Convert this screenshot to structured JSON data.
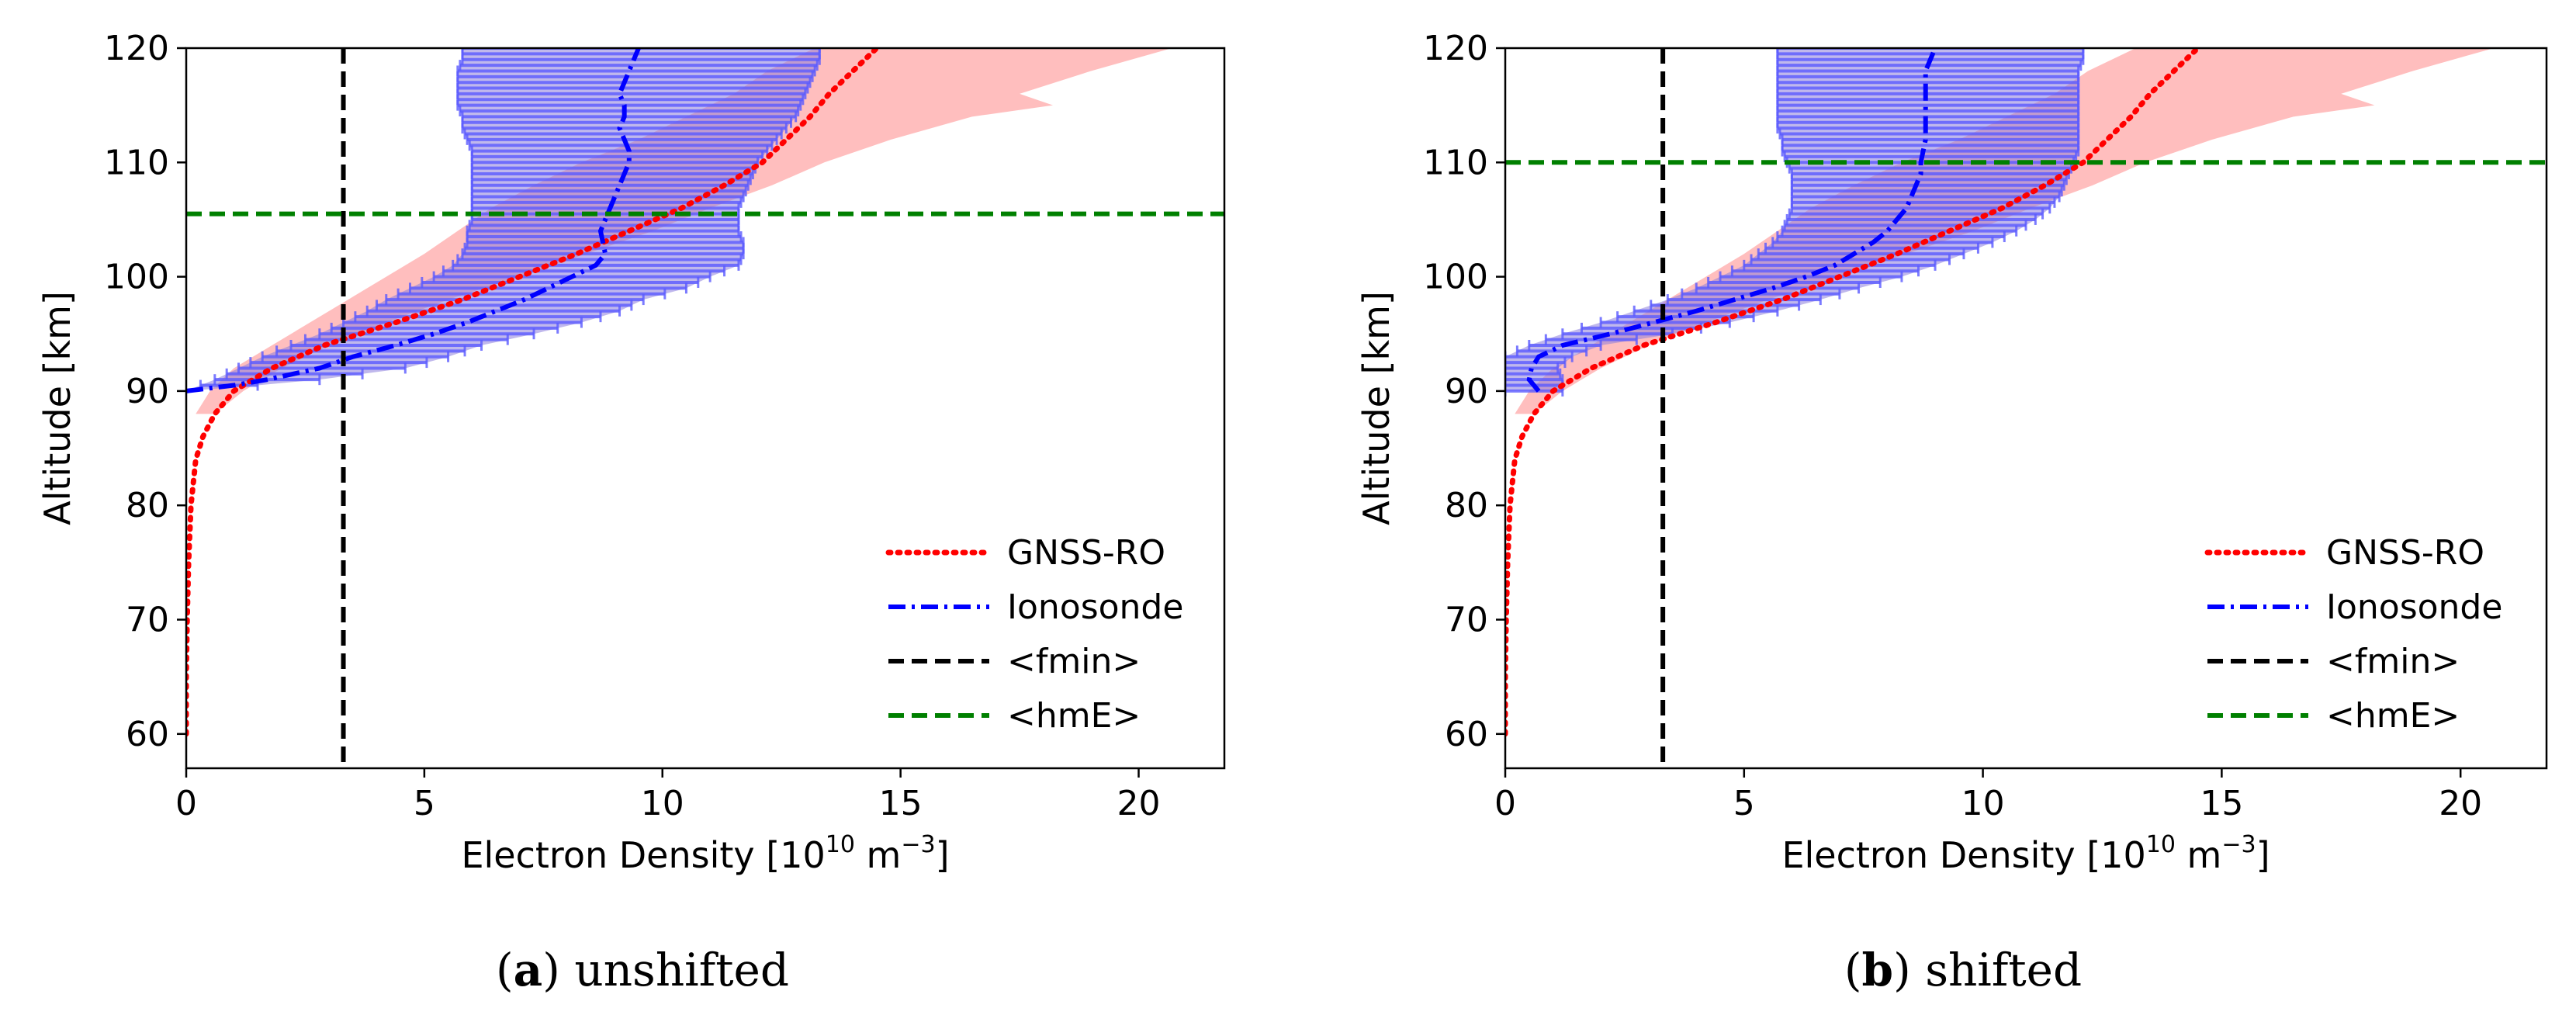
{
  "chart_data": [
    {
      "type": "line",
      "panel": "a",
      "caption_letter": "a",
      "caption_text": "unshifted",
      "xlabel": {
        "main": "Electron Density [10",
        "exp1": "10",
        "mid": " m",
        "exp2": "−3",
        "end": "]"
      },
      "ylabel": "Altitude [km]",
      "xlim": [
        0,
        21.8
      ],
      "ylim": [
        57,
        120
      ],
      "xticks": [
        "0",
        "5",
        "10",
        "15",
        "20"
      ],
      "xtick_values": [
        0,
        5,
        10,
        15,
        20
      ],
      "yticks": [
        "60",
        "70",
        "80",
        "90",
        "100",
        "110",
        "120"
      ],
      "ytick_values": [
        60,
        70,
        80,
        90,
        100,
        110,
        120
      ],
      "fmin": 3.3,
      "hmE": 105.5,
      "legend": [
        "GNSS-RO",
        "Ionosonde",
        "<fmin>",
        "<hmE>"
      ],
      "colors": {
        "gnss": "#ff0000",
        "band": "#ffb3b3",
        "iono": "#0000ff",
        "errorbar": "#5b5bff",
        "ionoband": "#8d7ddc",
        "fmin": "#000000",
        "hmE": "#008000"
      },
      "gnss_ro": {
        "altitude": [
          60,
          65,
          70,
          75,
          80,
          84,
          86,
          88,
          90,
          92,
          94,
          96,
          98,
          100,
          102,
          104,
          106,
          108,
          110,
          112,
          114,
          116,
          118,
          120
        ],
        "density": [
          0.0,
          0.0,
          0.02,
          0.05,
          0.1,
          0.2,
          0.35,
          0.6,
          1.0,
          1.8,
          2.9,
          4.4,
          5.8,
          7.0,
          8.2,
          9.3,
          10.4,
          11.3,
          12.1,
          12.6,
          13.1,
          13.5,
          14.0,
          14.5
        ]
      },
      "gnss_band": {
        "altitude": [
          88,
          90,
          92,
          94,
          96,
          98,
          100,
          102,
          104,
          106,
          108,
          110,
          112,
          114,
          115,
          116,
          118,
          120
        ],
        "lower": [
          0.2,
          0.5,
          1.0,
          1.8,
          2.6,
          3.4,
          4.2,
          5.0,
          5.7,
          6.4,
          7.3,
          8.3,
          9.5,
          10.5,
          11.0,
          11.5,
          12.2,
          13.2
        ],
        "upper": [
          0.6,
          1.2,
          2.0,
          3.0,
          4.2,
          5.5,
          7.0,
          8.4,
          9.8,
          11.0,
          12.3,
          13.4,
          14.8,
          16.5,
          18.2,
          17.5,
          19.0,
          20.7
        ]
      },
      "ionosonde": {
        "altitude": [
          90,
          90.5,
          91,
          92,
          93,
          94,
          95,
          96,
          97,
          98,
          99,
          100,
          101,
          102,
          103,
          104,
          105,
          106,
          107,
          108,
          109,
          110,
          111,
          112,
          113,
          114,
          115,
          116,
          117,
          118,
          119,
          120
        ],
        "density": [
          0.0,
          1.0,
          1.7,
          2.8,
          3.5,
          4.4,
          5.2,
          5.9,
          6.5,
          7.1,
          7.6,
          8.1,
          8.6,
          8.8,
          8.75,
          8.7,
          8.8,
          8.9,
          9.0,
          9.1,
          9.2,
          9.3,
          9.3,
          9.2,
          9.1,
          9.2,
          9.2,
          9.1,
          9.2,
          9.3,
          9.4,
          9.5
        ],
        "err_lo": [
          0.0,
          0.3,
          0.6,
          1.1,
          1.6,
          2.2,
          2.8,
          3.3,
          3.8,
          4.2,
          4.7,
          5.2,
          5.6,
          5.8,
          5.9,
          5.9,
          6.0,
          6.0,
          6.0,
          6.0,
          6.0,
          6.0,
          6.0,
          5.9,
          5.8,
          5.8,
          5.7,
          5.7,
          5.7,
          5.7,
          5.8,
          5.8
        ],
        "err_hi": [
          0.0,
          1.5,
          2.8,
          4.6,
          5.5,
          6.2,
          7.3,
          8.3,
          9.1,
          9.6,
          10.5,
          11.0,
          11.6,
          11.7,
          11.7,
          11.6,
          11.6,
          11.6,
          11.7,
          11.8,
          11.9,
          12.0,
          12.2,
          12.4,
          12.6,
          12.8,
          12.9,
          13.0,
          13.1,
          13.2,
          13.3,
          13.3
        ]
      }
    },
    {
      "type": "line",
      "panel": "b",
      "caption_letter": "b",
      "caption_text": "shifted",
      "xlabel": {
        "main": "Electron Density [10",
        "exp1": "10",
        "mid": " m",
        "exp2": "−3",
        "end": "]"
      },
      "ylabel": "Altitude [km]",
      "xlim": [
        0,
        21.8
      ],
      "ylim": [
        57,
        120
      ],
      "xticks": [
        "0",
        "5",
        "10",
        "15",
        "20"
      ],
      "xtick_values": [
        0,
        5,
        10,
        15,
        20
      ],
      "yticks": [
        "60",
        "70",
        "80",
        "90",
        "100",
        "110",
        "120"
      ],
      "ytick_values": [
        60,
        70,
        80,
        90,
        100,
        110,
        120
      ],
      "fmin": 3.3,
      "hmE": 110,
      "legend": [
        "GNSS-RO",
        "Ionosonde",
        "<fmin>",
        "<hmE>"
      ],
      "colors": {
        "gnss": "#ff0000",
        "band": "#ffb3b3",
        "iono": "#0000ff",
        "errorbar": "#5b5bff",
        "ionoband": "#8d7ddc",
        "fmin": "#000000",
        "hmE": "#008000"
      },
      "gnss_ro": {
        "altitude": [
          60,
          65,
          70,
          75,
          80,
          84,
          86,
          88,
          90,
          92,
          94,
          96,
          98,
          100,
          102,
          104,
          106,
          108,
          110,
          112,
          114,
          116,
          118,
          120
        ],
        "density": [
          0.0,
          0.0,
          0.02,
          0.05,
          0.1,
          0.2,
          0.35,
          0.6,
          1.0,
          1.8,
          2.9,
          4.4,
          5.8,
          7.0,
          8.2,
          9.3,
          10.4,
          11.3,
          12.1,
          12.6,
          13.1,
          13.5,
          14.0,
          14.5
        ]
      },
      "gnss_band": {
        "altitude": [
          88,
          90,
          92,
          94,
          96,
          98,
          100,
          102,
          104,
          106,
          108,
          110,
          112,
          114,
          115,
          116,
          118,
          120
        ],
        "lower": [
          0.2,
          0.5,
          1.0,
          1.8,
          2.6,
          3.4,
          4.2,
          5.0,
          5.7,
          6.4,
          7.3,
          8.3,
          9.5,
          10.5,
          11.0,
          11.5,
          12.2,
          13.2
        ],
        "upper": [
          0.6,
          1.2,
          2.0,
          3.0,
          4.2,
          5.5,
          7.0,
          8.4,
          9.8,
          11.0,
          12.3,
          13.4,
          14.8,
          16.5,
          18.2,
          17.5,
          19.0,
          20.7
        ]
      },
      "ionosonde": {
        "altitude": [
          90,
          91,
          92,
          93,
          94,
          95,
          96,
          97,
          98,
          99,
          100,
          101,
          102,
          103,
          104,
          105,
          106,
          107,
          108,
          109,
          110,
          111,
          112,
          113,
          114,
          115,
          116,
          117,
          118,
          119,
          120
        ],
        "density": [
          0.7,
          0.5,
          0.55,
          0.7,
          1.2,
          2.2,
          3.1,
          4.0,
          4.8,
          5.6,
          6.3,
          6.9,
          7.3,
          7.7,
          8.0,
          8.2,
          8.4,
          8.5,
          8.6,
          8.7,
          8.7,
          8.75,
          8.8,
          8.8,
          8.8,
          8.8,
          8.8,
          8.8,
          8.8,
          8.9,
          9.0
        ],
        "err_lo": [
          0.0,
          0.0,
          0.0,
          0.0,
          0.5,
          1.2,
          2.0,
          2.7,
          3.4,
          4.0,
          4.5,
          5.0,
          5.3,
          5.6,
          5.8,
          5.9,
          6.0,
          6.0,
          6.0,
          6.0,
          5.9,
          5.8,
          5.8,
          5.7,
          5.7,
          5.7,
          5.7,
          5.7,
          5.7,
          5.7,
          5.7
        ],
        "err_hi": [
          1.2,
          1.2,
          1.1,
          1.4,
          2.0,
          3.5,
          4.7,
          5.7,
          6.6,
          7.4,
          8.3,
          9.0,
          9.6,
          10.2,
          10.7,
          11.1,
          11.4,
          11.6,
          11.7,
          11.8,
          11.9,
          12.0,
          12.0,
          12.0,
          12.0,
          12.0,
          12.0,
          12.0,
          12.0,
          12.1,
          12.1
        ]
      }
    }
  ]
}
